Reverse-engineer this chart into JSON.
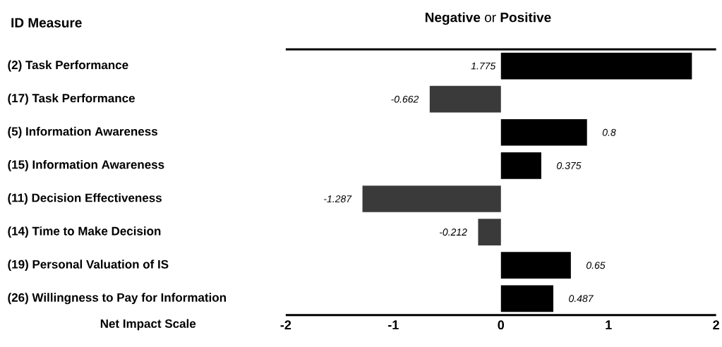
{
  "chart_data": {
    "type": "bar",
    "orientation": "horizontal",
    "title": "**Negative** or **Positive**",
    "ylabel": "ID Measure",
    "xlabel": "Net Impact Scale",
    "categories": [
      "(2) Task Performance",
      "(17) Task Performance",
      "(5) Information Awareness",
      "(15) Information Awareness",
      "(11) Decision Effectiveness",
      "(14) Time to Make Decision",
      "(19) Personal Valuation of IS",
      "(26) Willingness to Pay for Information"
    ],
    "values": [
      1.775,
      -0.662,
      0.8,
      0.375,
      -1.287,
      -0.212,
      0.65,
      0.487
    ],
    "colors": [
      "#000000",
      "#3a3a3a",
      "#000000",
      "#000000",
      "#3a3a3a",
      "#3a3a3a",
      "#000000",
      "#000000"
    ],
    "data_labels": true,
    "xlim": [
      -2,
      2
    ],
    "xticks": [
      -2,
      -1,
      0,
      1,
      2
    ]
  }
}
